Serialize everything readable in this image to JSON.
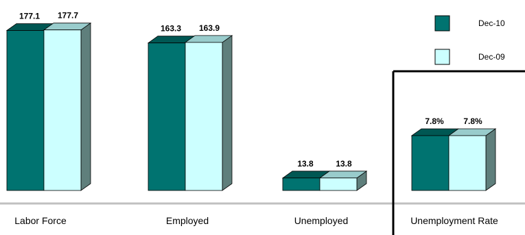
{
  "chart_data": {
    "type": "bar",
    "categories": [
      "Labor Force",
      "Employed",
      "Unemployed",
      "Unemployment Rate"
    ],
    "series": [
      {
        "name": "Dec-10",
        "values": [
          177.1,
          163.3,
          13.8,
          7.8
        ],
        "labels": [
          "177.1",
          "163.3",
          "13.8",
          "7.8%"
        ]
      },
      {
        "name": "Dec-09",
        "values": [
          177.7,
          163.9,
          13.8,
          7.8
        ],
        "labels": [
          "177.7",
          "163.9",
          "13.8",
          "7.8%"
        ]
      }
    ],
    "legend_position": "top-right",
    "colors": {
      "series1_front": "#007370",
      "series1_top": "#005753",
      "series2_front": "#ccffff",
      "series2_top": "#99cccc",
      "side": "#5f7f7c",
      "baseline": "#c0c0c0",
      "frame": "#000000"
    }
  }
}
